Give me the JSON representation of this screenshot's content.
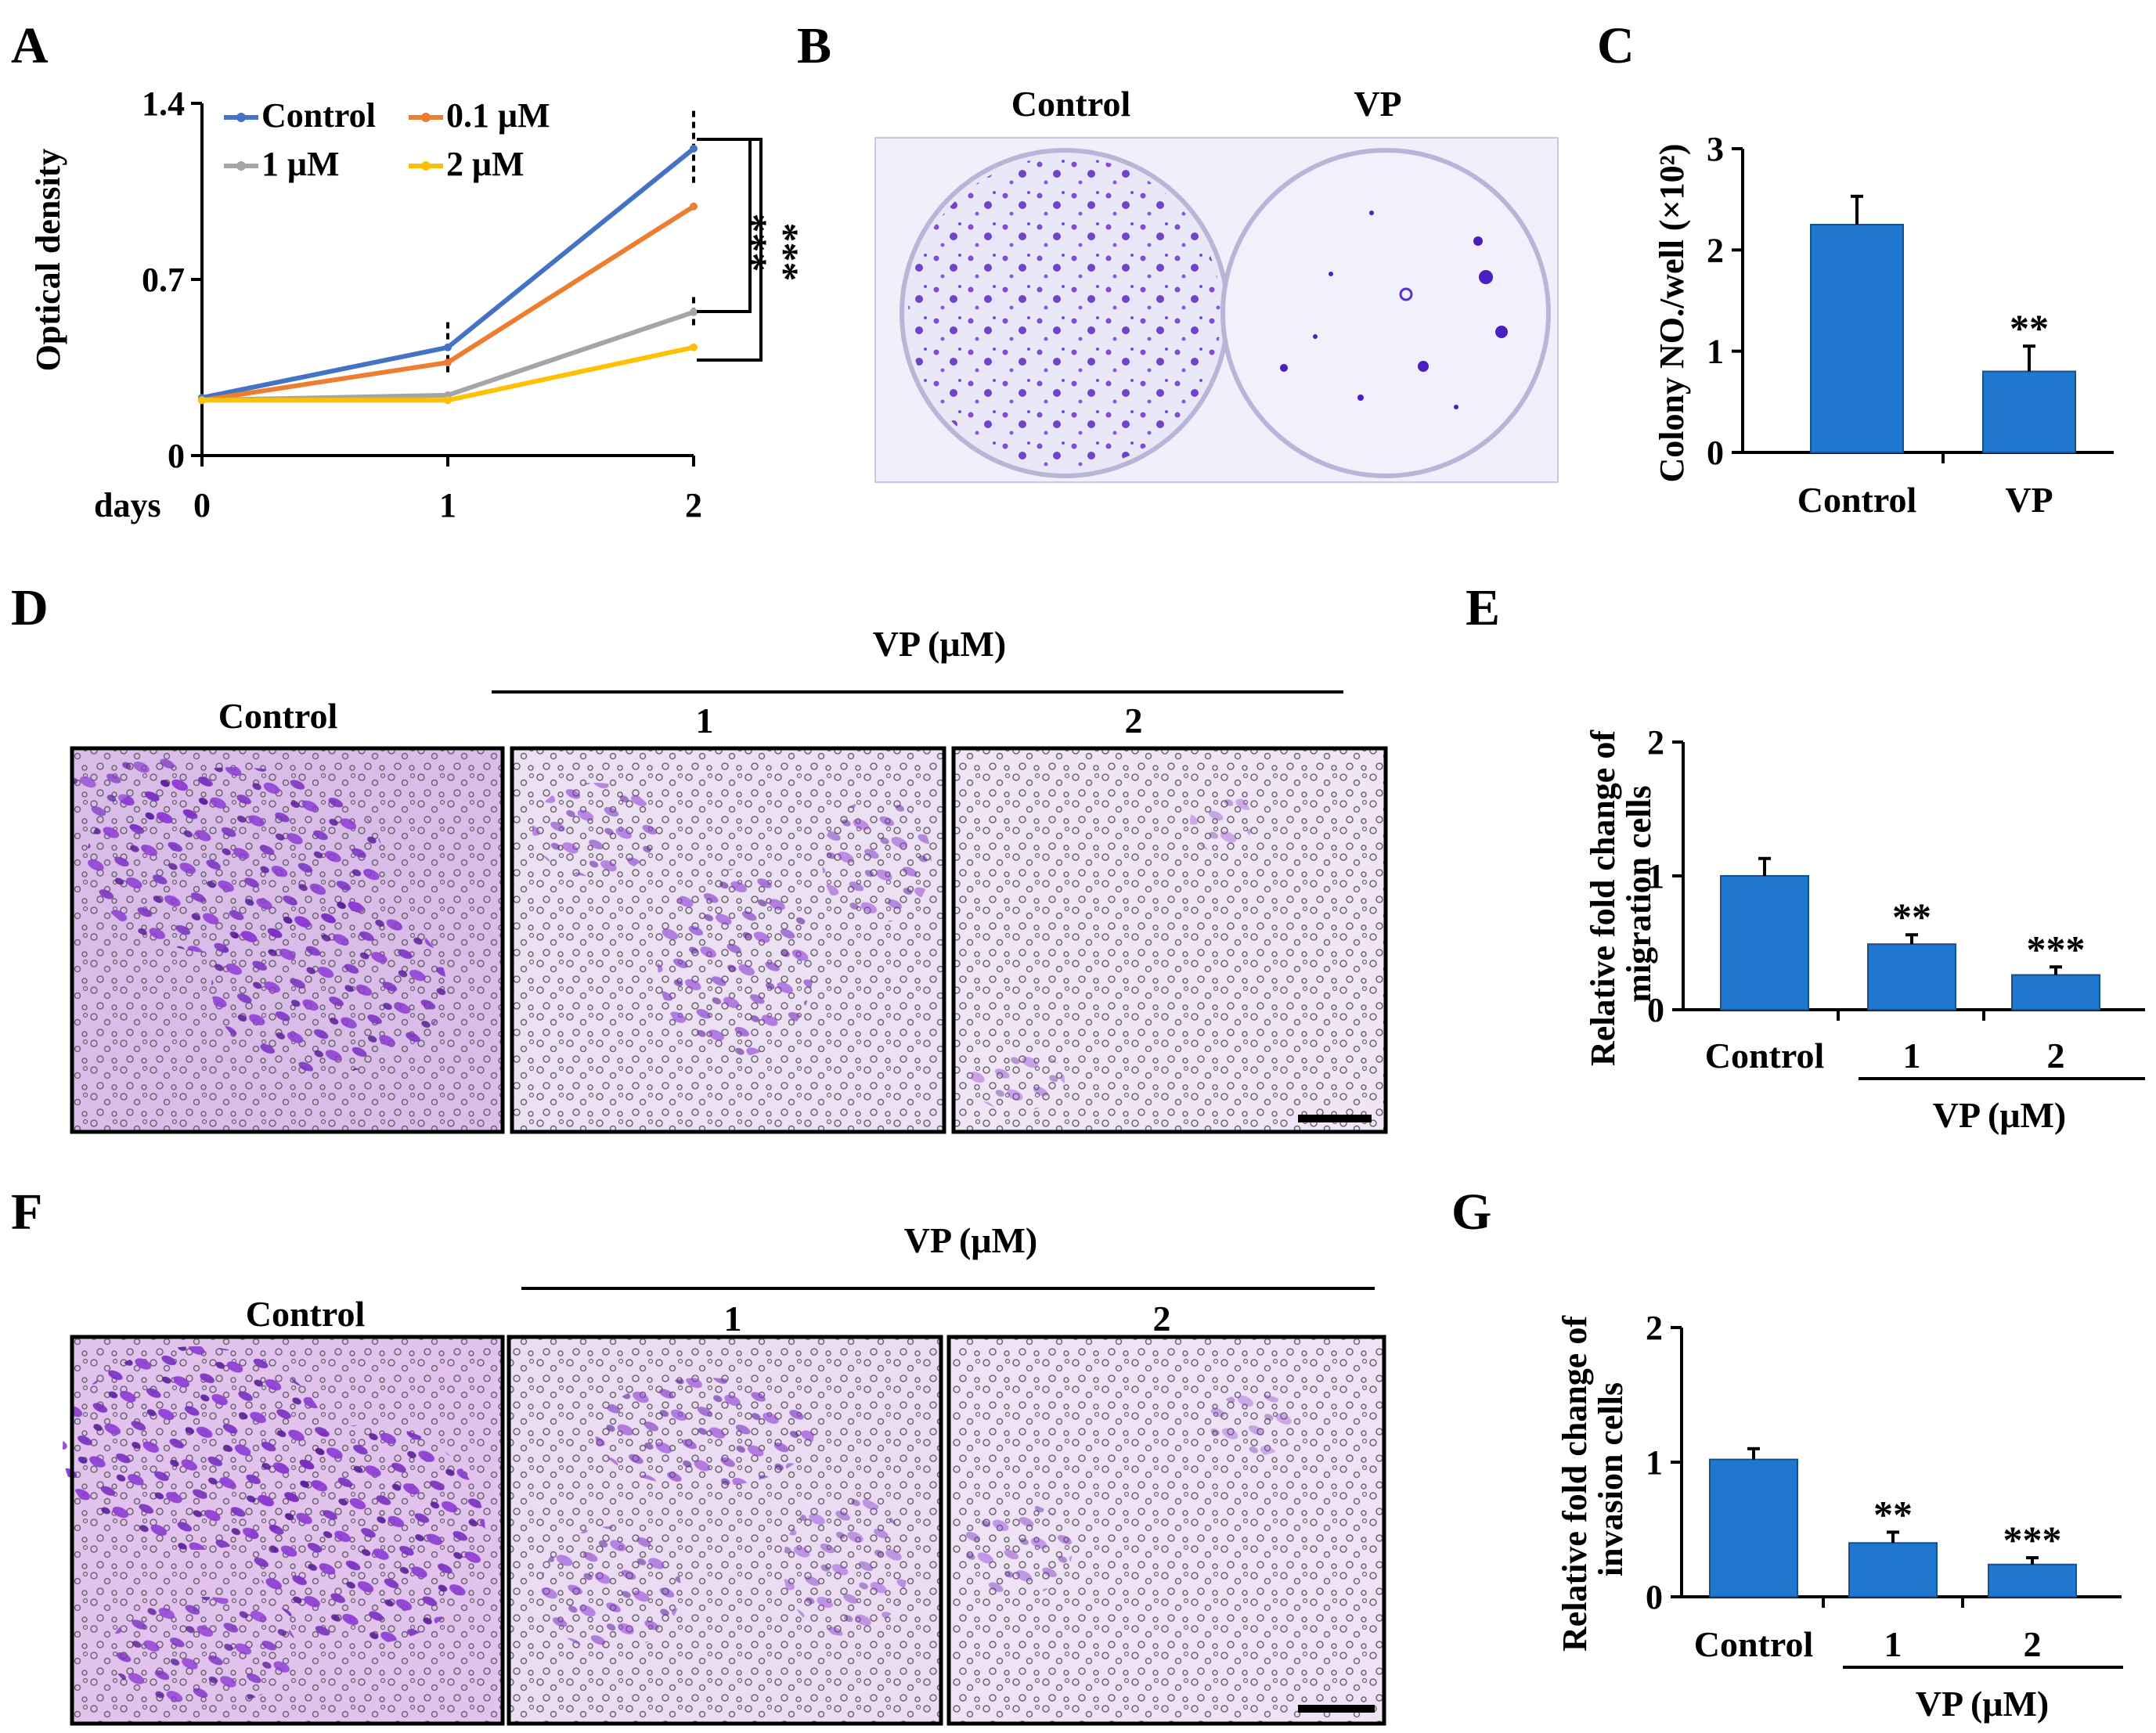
{
  "panel_letters": [
    "A",
    "B",
    "C",
    "D",
    "E",
    "F",
    "G"
  ],
  "colors": {
    "control": "#4472C4",
    "c01": "#ED7D31",
    "c1": "#A5A5A5",
    "c2": "#FFC000",
    "bar": "#1F77D0",
    "stain": "#8a2be2",
    "plate_bg": "#eceaf8",
    "transwell_bg": "#e6d6ee"
  },
  "chart_data": [
    {
      "id": "A",
      "type": "line",
      "ylabel": "Optical density",
      "x_axis_title": "days",
      "categories": [
        "0",
        "1",
        "2"
      ],
      "yticks": [
        "0",
        "0.7",
        "1.4"
      ],
      "ylim": [
        0,
        1.4
      ],
      "series": [
        {
          "name": "Control",
          "values": [
            0.23,
            0.43,
            1.22
          ],
          "errors": [
            0.0,
            0.1,
            0.15
          ]
        },
        {
          "name": "0.1 μM",
          "values": [
            0.22,
            0.37,
            0.99
          ],
          "errors": [
            0.0,
            0.0,
            0.0
          ]
        },
        {
          "name": "1 μM",
          "values": [
            0.22,
            0.24,
            0.57
          ],
          "errors": [
            0.0,
            0.0,
            0.06
          ]
        },
        {
          "name": "2 μM",
          "values": [
            0.22,
            0.22,
            0.43
          ],
          "errors": [
            0.0,
            0.0,
            0.0
          ]
        }
      ],
      "annotations": [
        "***",
        "***"
      ]
    },
    {
      "id": "C",
      "type": "bar",
      "ylabel": "Colony NO./well (×10²)",
      "categories": [
        "Control",
        "VP"
      ],
      "values": [
        2.25,
        0.8
      ],
      "errors": [
        0.28,
        0.25
      ],
      "yticks": [
        "0",
        "1",
        "2",
        "3"
      ],
      "ylim": [
        0,
        3
      ],
      "significance": [
        "",
        "**"
      ]
    },
    {
      "id": "E",
      "type": "bar",
      "ylabel": "Relative fold change of migration cells",
      "categories": [
        "Control",
        "1",
        "2"
      ],
      "group_label": "VP (μM)",
      "values": [
        1.0,
        0.49,
        0.26
      ],
      "errors": [
        0.13,
        0.07,
        0.06
      ],
      "yticks": [
        "0",
        "1",
        "2"
      ],
      "ylim": [
        0,
        2
      ],
      "significance": [
        "",
        "**",
        "***"
      ]
    },
    {
      "id": "G",
      "type": "bar",
      "ylabel": "Relative fold change of invasion cells",
      "categories": [
        "Control",
        "1",
        "2"
      ],
      "group_label": "VP (μM)",
      "values": [
        1.02,
        0.4,
        0.24
      ],
      "errors": [
        0.08,
        0.08,
        0.05
      ],
      "yticks": [
        "0",
        "1",
        "2"
      ],
      "ylim": [
        0,
        2
      ],
      "significance": [
        "",
        "**",
        "***"
      ]
    }
  ],
  "panel_b": {
    "labels": [
      "Control",
      "VP"
    ]
  },
  "panel_d": {
    "top_label": "VP (μM)",
    "labels": [
      "Control",
      "1",
      "2"
    ]
  },
  "panel_f": {
    "top_label": "VP (μM)",
    "labels": [
      "Control",
      "1",
      "2"
    ]
  }
}
